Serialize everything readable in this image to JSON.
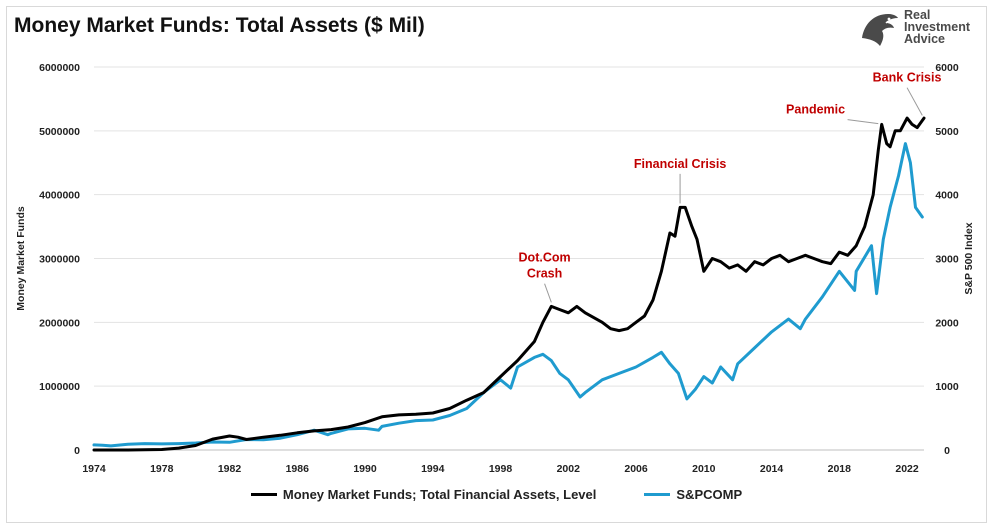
{
  "title": "Money Market Funds: Total Assets ($ Mil)",
  "logo": {
    "line1": "Real",
    "line2": "Investment",
    "line3": "Advice",
    "icon": "eagle-head-icon"
  },
  "colors": {
    "mmf": "#000000",
    "spx": "#1f9bcf",
    "annotation": "#c00000",
    "grid": "#e3e3e3"
  },
  "chart_data": {
    "type": "line",
    "x_axis": {
      "range": [
        1974,
        2023
      ],
      "ticks": [
        "1974",
        "1978",
        "1982",
        "1986",
        "1990",
        "1994",
        "1998",
        "2002",
        "2006",
        "2010",
        "2014",
        "2018",
        "2022"
      ]
    },
    "y_left": {
      "label": "Money Market Funds",
      "range": [
        0,
        6000000
      ],
      "ticks": [
        "0",
        "1000000",
        "2000000",
        "3000000",
        "4000000",
        "5000000",
        "6000000"
      ]
    },
    "y_right": {
      "label": "S&P 500 Index",
      "range": [
        0,
        6000
      ],
      "ticks": [
        "0",
        "1000",
        "2000",
        "3000",
        "4000",
        "5000",
        "6000"
      ]
    },
    "grid": true,
    "legend_position": "bottom",
    "series": [
      {
        "name": "Money Market Funds; Total Financial Assets, Level",
        "axis": "left",
        "color": "#000000",
        "points": [
          [
            1974,
            0
          ],
          [
            1976,
            0
          ],
          [
            1977,
            3000
          ],
          [
            1978,
            8000
          ],
          [
            1979,
            30000
          ],
          [
            1980,
            70000
          ],
          [
            1981,
            170000
          ],
          [
            1982,
            220000
          ],
          [
            1982.5,
            200000
          ],
          [
            1983,
            165000
          ],
          [
            1984,
            200000
          ],
          [
            1985,
            230000
          ],
          [
            1986,
            270000
          ],
          [
            1987,
            300000
          ],
          [
            1988,
            320000
          ],
          [
            1989,
            360000
          ],
          [
            1990,
            430000
          ],
          [
            1991,
            520000
          ],
          [
            1992,
            550000
          ],
          [
            1993,
            560000
          ],
          [
            1994,
            580000
          ],
          [
            1995,
            650000
          ],
          [
            1996,
            780000
          ],
          [
            1997,
            900000
          ],
          [
            1998,
            1150000
          ],
          [
            1999,
            1400000
          ],
          [
            2000,
            1700000
          ],
          [
            2000.5,
            2000000
          ],
          [
            2001,
            2250000
          ],
          [
            2001.5,
            2200000
          ],
          [
            2002,
            2150000
          ],
          [
            2002.5,
            2250000
          ],
          [
            2003,
            2150000
          ],
          [
            2004,
            2000000
          ],
          [
            2004.5,
            1900000
          ],
          [
            2005,
            1870000
          ],
          [
            2005.5,
            1900000
          ],
          [
            2006,
            2000000
          ],
          [
            2006.5,
            2100000
          ],
          [
            2007,
            2350000
          ],
          [
            2007.5,
            2800000
          ],
          [
            2008,
            3400000
          ],
          [
            2008.3,
            3350000
          ],
          [
            2008.6,
            3800000
          ],
          [
            2008.9,
            3800000
          ],
          [
            2009.3,
            3500000
          ],
          [
            2009.6,
            3300000
          ],
          [
            2010,
            2800000
          ],
          [
            2010.5,
            3000000
          ],
          [
            2011,
            2950000
          ],
          [
            2011.5,
            2850000
          ],
          [
            2012,
            2900000
          ],
          [
            2012.5,
            2800000
          ],
          [
            2013,
            2950000
          ],
          [
            2013.5,
            2900000
          ],
          [
            2014,
            3000000
          ],
          [
            2014.5,
            3050000
          ],
          [
            2015,
            2950000
          ],
          [
            2015.5,
            3000000
          ],
          [
            2016,
            3050000
          ],
          [
            2016.5,
            3000000
          ],
          [
            2017,
            2950000
          ],
          [
            2017.5,
            2920000
          ],
          [
            2018,
            3100000
          ],
          [
            2018.5,
            3050000
          ],
          [
            2019,
            3200000
          ],
          [
            2019.5,
            3500000
          ],
          [
            2020,
            4000000
          ],
          [
            2020.3,
            4700000
          ],
          [
            2020.5,
            5100000
          ],
          [
            2020.8,
            4800000
          ],
          [
            2021,
            4750000
          ],
          [
            2021.3,
            5000000
          ],
          [
            2021.6,
            5000000
          ],
          [
            2022,
            5200000
          ],
          [
            2022.3,
            5100000
          ],
          [
            2022.6,
            5050000
          ],
          [
            2023,
            5200000
          ]
        ]
      },
      {
        "name": "S&PCOMP",
        "axis": "right",
        "color": "#1f9bcf",
        "points": [
          [
            1974,
            80
          ],
          [
            1974.5,
            75
          ],
          [
            1975,
            65
          ],
          [
            1976,
            90
          ],
          [
            1977,
            100
          ],
          [
            1978,
            95
          ],
          [
            1979,
            100
          ],
          [
            1980,
            110
          ],
          [
            1981,
            125
          ],
          [
            1982,
            120
          ],
          [
            1983,
            165
          ],
          [
            1984,
            160
          ],
          [
            1985,
            185
          ],
          [
            1986,
            240
          ],
          [
            1987,
            310
          ],
          [
            1987.8,
            240
          ],
          [
            1988,
            260
          ],
          [
            1989,
            330
          ],
          [
            1990,
            340
          ],
          [
            1990.8,
            310
          ],
          [
            1991,
            370
          ],
          [
            1992,
            420
          ],
          [
            1993,
            460
          ],
          [
            1994,
            470
          ],
          [
            1995,
            540
          ],
          [
            1996,
            650
          ],
          [
            1997,
            900
          ],
          [
            1998,
            1100
          ],
          [
            1998.6,
            970
          ],
          [
            1999,
            1300
          ],
          [
            2000,
            1450
          ],
          [
            2000.5,
            1500
          ],
          [
            2001,
            1400
          ],
          [
            2001.5,
            1200
          ],
          [
            2002,
            1100
          ],
          [
            2002.7,
            830
          ],
          [
            2003,
            900
          ],
          [
            2004,
            1100
          ],
          [
            2005,
            1200
          ],
          [
            2006,
            1300
          ],
          [
            2007,
            1450
          ],
          [
            2007.5,
            1530
          ],
          [
            2008,
            1350
          ],
          [
            2008.5,
            1200
          ],
          [
            2009,
            800
          ],
          [
            2009.5,
            950
          ],
          [
            2010,
            1150
          ],
          [
            2010.5,
            1050
          ],
          [
            2011,
            1300
          ],
          [
            2011.7,
            1100
          ],
          [
            2012,
            1350
          ],
          [
            2013,
            1600
          ],
          [
            2014,
            1850
          ],
          [
            2015,
            2050
          ],
          [
            2015.7,
            1900
          ],
          [
            2016,
            2050
          ],
          [
            2017,
            2400
          ],
          [
            2018,
            2800
          ],
          [
            2018.9,
            2500
          ],
          [
            2019,
            2800
          ],
          [
            2019.9,
            3200
          ],
          [
            2020.2,
            2450
          ],
          [
            2020.6,
            3300
          ],
          [
            2021,
            3800
          ],
          [
            2021.5,
            4300
          ],
          [
            2021.9,
            4800
          ],
          [
            2022.2,
            4500
          ],
          [
            2022.5,
            3800
          ],
          [
            2022.9,
            3650
          ]
        ]
      }
    ],
    "annotations": [
      {
        "lines": [
          "Dot.Com",
          "Crash"
        ],
        "x": 2001,
        "y": 2250000,
        "label_x": 2000.6,
        "label_y": 2950000
      },
      {
        "lines": [
          "Financial Crisis"
        ],
        "x": 2008.6,
        "y": 3800000,
        "label_x": 2008.6,
        "label_y": 4420000
      },
      {
        "lines": [
          "Pandemic"
        ],
        "x": 2020.3,
        "y": 5050000,
        "label_x": 2016.6,
        "label_y": 5270000
      },
      {
        "lines": [
          "Bank Crisis"
        ],
        "x": 2022.9,
        "y": 5180000,
        "label_x": 2022,
        "label_y": 5770000
      }
    ]
  }
}
